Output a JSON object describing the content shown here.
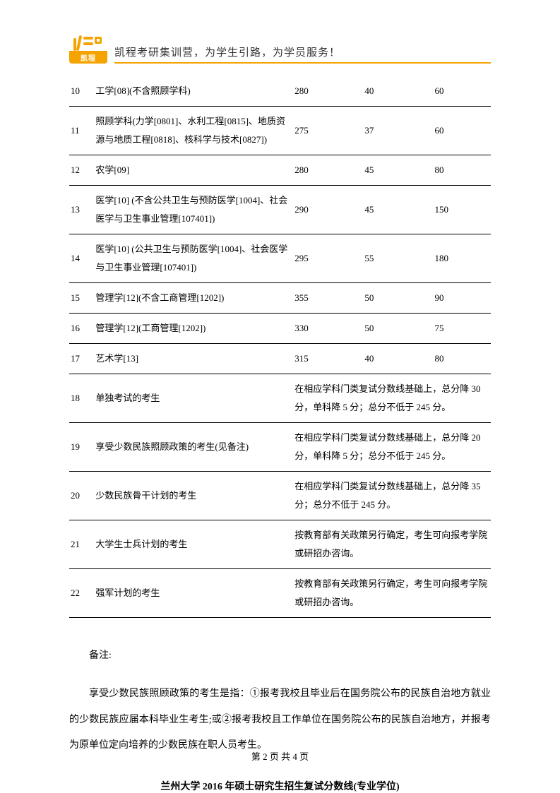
{
  "header": {
    "logo_text": "凯程",
    "slogan": "凯程考研集训营，为学生引路，为学员服务！"
  },
  "table": {
    "rows": [
      {
        "idx": "10",
        "name": "工学[08](不含照顾学科)",
        "a": "280",
        "b": "40",
        "c": "60"
      },
      {
        "idx": "11",
        "name": "照顾学科(力学[0801]、水利工程[0815]、地质资源与地质工程[0818]、核科学与技术[0827])",
        "a": "275",
        "b": "37",
        "c": "60"
      },
      {
        "idx": "12",
        "name": "农学[09]",
        "a": "280",
        "b": "45",
        "c": "80"
      },
      {
        "idx": "13",
        "name": "医学[10] (不含公共卫生与预防医学[1004]、社会医学与卫生事业管理[107401])",
        "a": "290",
        "b": "45",
        "c": "150"
      },
      {
        "idx": "14",
        "name": "医学[10] (公共卫生与预防医学[1004]、社会医学与卫生事业管理[107401])",
        "a": "295",
        "b": "55",
        "c": "180"
      },
      {
        "idx": "15",
        "name": "管理学[12](不含工商管理[1202])",
        "a": "355",
        "b": "50",
        "c": "90"
      },
      {
        "idx": "16",
        "name": "管理学[12](工商管理[1202])",
        "a": "330",
        "b": "50",
        "c": "75"
      },
      {
        "idx": "17",
        "name": "艺术学[13]",
        "a": "315",
        "b": "40",
        "c": "80"
      },
      {
        "idx": "18",
        "name": "单独考试的考生",
        "merged": "在相应学科门类复试分数线基础上，总分降 30 分，单科降 5 分；总分不低于 245 分。"
      },
      {
        "idx": "19",
        "name": "享受少数民族照顾政策的考生(见备注)",
        "merged": "在相应学科门类复试分数线基础上，总分降 20 分，单科降 5 分；总分不低于 245 分。"
      },
      {
        "idx": "20",
        "name": "少数民族骨干计划的考生",
        "merged": "在相应学科门类复试分数线基础上，总分降 35 分；总分不低于 245 分。"
      },
      {
        "idx": "21",
        "name": "大学生士兵计划的考生",
        "merged": "按教育部有关政策另行确定，考生可向报考学院或研招办咨询。"
      },
      {
        "idx": "22",
        "name": "强军计划的考生",
        "merged": "按教育部有关政策另行确定，考生可向报考学院或研招办咨询。"
      }
    ]
  },
  "notes": {
    "label": "备注:",
    "body": "享受少数民族照顾政策的考生是指：①报考我校且毕业后在国务院公布的民族自治地方就业的少数民族应届本科毕业生考生;或②报考我校且工作单位在国务院公布的民族自治地方，并报考为原单位定向培养的少数民族在职人员考生。"
  },
  "subtitle": "兰州大学 2016 年硕士研究生招生复试分数线(专业学位)",
  "footer": "第 2 页 共 4 页"
}
